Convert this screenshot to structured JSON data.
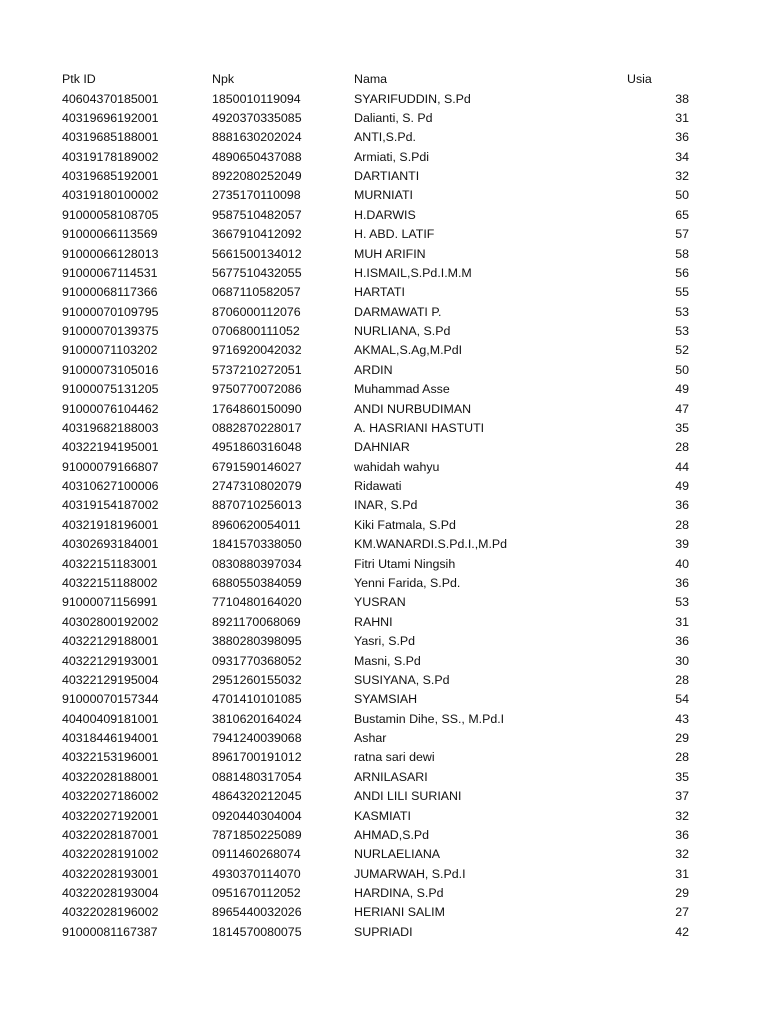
{
  "headers": {
    "ptk_id": "Ptk ID",
    "npk": "Npk",
    "nama": "Nama",
    "usia": "Usia"
  },
  "rows": [
    [
      "40604370185001",
      "1850010119094",
      "SYARIFUDDIN, S.Pd",
      "38"
    ],
    [
      "40319696192001",
      "4920370335085",
      "Dalianti, S. Pd",
      "31"
    ],
    [
      "40319685188001",
      "8881630202024",
      "ANTI,S.Pd.",
      "36"
    ],
    [
      "40319178189002",
      "4890650437088",
      "Armiati, S.Pdi",
      "34"
    ],
    [
      "40319685192001",
      "8922080252049",
      "DARTIANTI",
      "32"
    ],
    [
      "40319180100002",
      "2735170110098",
      "MURNIATI",
      "50"
    ],
    [
      "91000058108705",
      "9587510482057",
      "H.DARWIS",
      "65"
    ],
    [
      "91000066113569",
      "3667910412092",
      "H. ABD. LATIF",
      "57"
    ],
    [
      "91000066128013",
      "5661500134012",
      "MUH ARIFIN",
      "58"
    ],
    [
      "91000067114531",
      "5677510432055",
      "H.ISMAIL,S.Pd.I.M.M",
      "56"
    ],
    [
      "91000068117366",
      "0687110582057",
      "HARTATI",
      "55"
    ],
    [
      "91000070109795",
      "8706000112076",
      "DARMAWATI P.",
      "53"
    ],
    [
      "91000070139375",
      "0706800111052",
      "NURLIANA, S.Pd",
      "53"
    ],
    [
      "91000071103202",
      "9716920042032",
      "AKMAL,S.Ag,M.PdI",
      "52"
    ],
    [
      "91000073105016",
      "5737210272051",
      "ARDIN",
      "50"
    ],
    [
      "91000075131205",
      "9750770072086",
      "Muhammad Asse",
      "49"
    ],
    [
      "91000076104462",
      "1764860150090",
      "ANDI NURBUDIMAN",
      "47"
    ],
    [
      "40319682188003",
      "0882870228017",
      "A. HASRIANI HASTUTI",
      "35"
    ],
    [
      "40322194195001",
      "4951860316048",
      "DAHNIAR",
      "28"
    ],
    [
      "91000079166807",
      "6791590146027",
      "wahidah wahyu",
      "44"
    ],
    [
      "40310627100006",
      "2747310802079",
      "Ridawati",
      "49"
    ],
    [
      "40319154187002",
      "8870710256013",
      "INAR, S.Pd",
      "36"
    ],
    [
      "40321918196001",
      "8960620054011",
      "Kiki Fatmala, S.Pd",
      "28"
    ],
    [
      "40302693184001",
      "1841570338050",
      "KM.WANARDI.S.Pd.I.,M.Pd",
      "39"
    ],
    [
      "40322151183001",
      "0830880397034",
      "Fitri Utami Ningsih",
      "40"
    ],
    [
      "40322151188002",
      "6880550384059",
      "Yenni Farida, S.Pd.",
      "36"
    ],
    [
      "91000071156991",
      "7710480164020",
      "YUSRAN",
      "53"
    ],
    [
      "40302800192002",
      "8921170068069",
      "RAHNI",
      "31"
    ],
    [
      "40322129188001",
      "3880280398095",
      "Yasri, S.Pd",
      "36"
    ],
    [
      "40322129193001",
      "0931770368052",
      "Masni, S.Pd",
      "30"
    ],
    [
      "40322129195004",
      "2951260155032",
      "SUSIYANA, S.Pd",
      "28"
    ],
    [
      "91000070157344",
      "4701410101085",
      "SYAMSIAH",
      "54"
    ],
    [
      "40400409181001",
      "3810620164024",
      "Bustamin Dihe, SS., M.Pd.I",
      "43"
    ],
    [
      "40318446194001",
      "7941240039068",
      "Ashar",
      "29"
    ],
    [
      "40322153196001",
      "8961700191012",
      "ratna sari dewi",
      "28"
    ],
    [
      "40322028188001",
      "0881480317054",
      "ARNILASARI",
      "35"
    ],
    [
      "40322027186002",
      "4864320212045",
      "ANDI LILI SURIANI",
      "37"
    ],
    [
      "40322027192001",
      "0920440304004",
      "KASMIATI",
      "32"
    ],
    [
      "40322028187001",
      "7871850225089",
      "AHMAD,S.Pd",
      "36"
    ],
    [
      "40322028191002",
      "0911460268074",
      "NURLAELIANA",
      "32"
    ],
    [
      "40322028193001",
      "4930370114070",
      "JUMARWAH, S.Pd.I",
      "31"
    ],
    [
      "40322028193004",
      "0951670112052",
      "HARDINA, S.Pd",
      "29"
    ],
    [
      "40322028196002",
      "8965440032026",
      "HERIANI SALIM",
      "27"
    ],
    [
      "91000081167387",
      "1814570080075",
      "SUPRIADI",
      "42"
    ]
  ]
}
